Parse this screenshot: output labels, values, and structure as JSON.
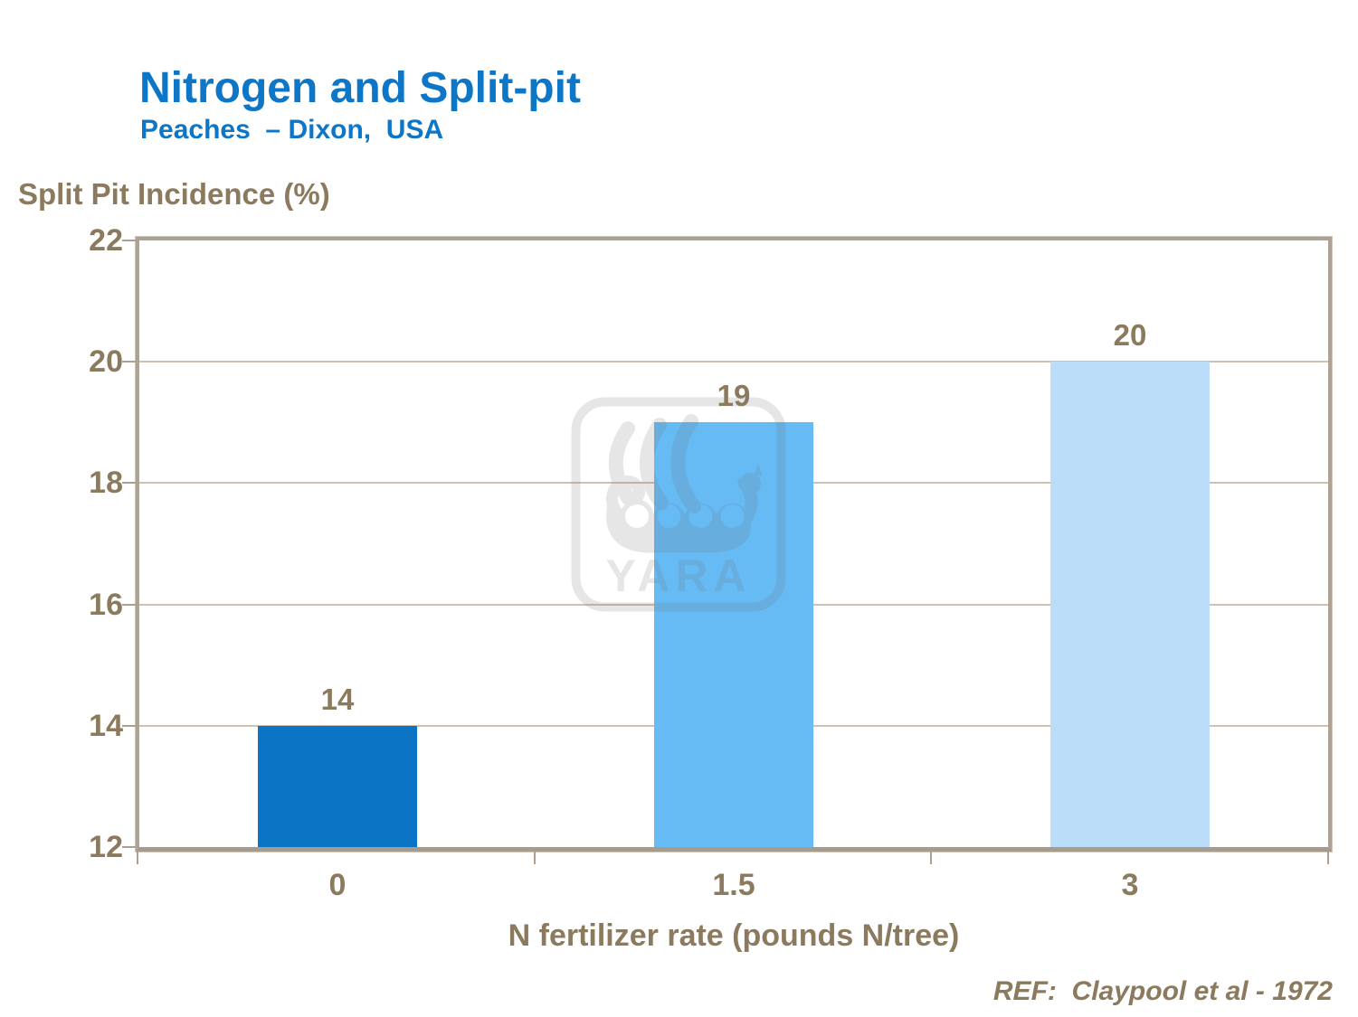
{
  "header": {
    "title": "Nitrogen and Split-pit",
    "subtitle": "Peaches  – Dixon,  USA"
  },
  "chart_data": {
    "type": "bar",
    "categories": [
      "0",
      "1.5",
      "3"
    ],
    "values": [
      14,
      19,
      20
    ],
    "value_labels": [
      "14",
      "19",
      "20"
    ],
    "title": "Nitrogen and Split-pit",
    "subtitle": "Peaches – Dixon, USA",
    "xlabel": "N fertilizer rate (pounds N/tree)",
    "ylabel": "Split Pit Incidence (%)",
    "ylim": [
      12,
      22
    ],
    "yticks": [
      12,
      14,
      16,
      18,
      20,
      22
    ],
    "grid": "horizontal",
    "legend": "none",
    "bar_colors": [
      "#0b74c5",
      "#66bbf5",
      "#bbddf9"
    ]
  },
  "footer": {
    "reference": "REF:  Claypool et al - 1972"
  },
  "watermark": {
    "text": "YARA",
    "description": "yara-viking-ship-logo"
  },
  "colors": {
    "title_blue": "#0e76c6",
    "text_brown": "#8b7a5e",
    "axis_line": "#aba091",
    "gridline": "#ccc2b2",
    "plot_border": "#ada294"
  }
}
